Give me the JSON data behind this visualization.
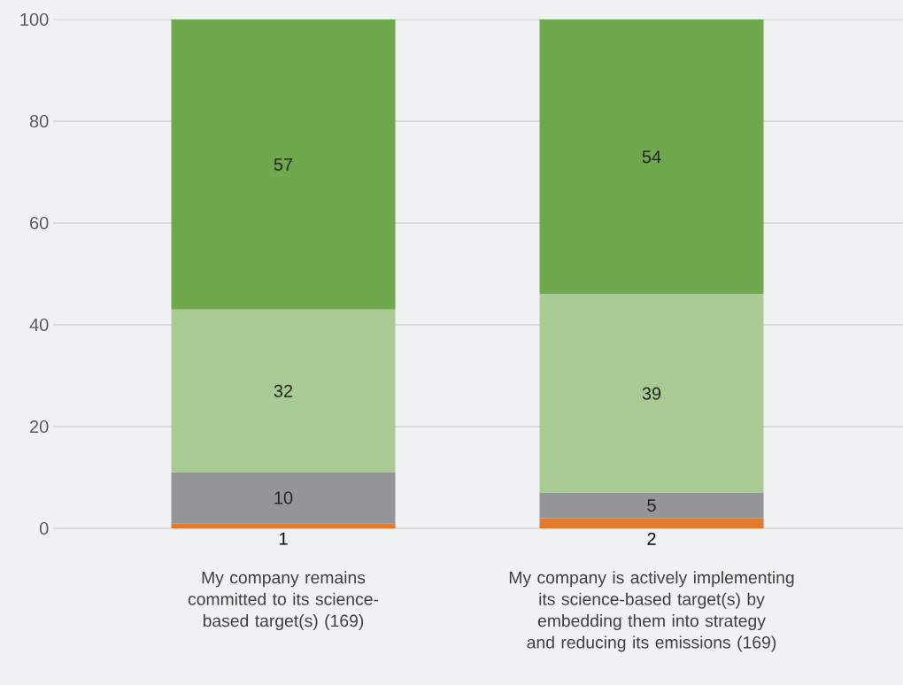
{
  "chart_data": {
    "type": "bar",
    "stacked": true,
    "categories": [
      "1",
      "2"
    ],
    "series": [
      {
        "color": "#e07b2f",
        "values": [
          1,
          2
        ],
        "value_labels": [
          null,
          null
        ]
      },
      {
        "color": "#939598",
        "values": [
          10,
          5
        ],
        "value_labels": [
          "10",
          "5"
        ]
      },
      {
        "color": "#a9cb93",
        "values": [
          32,
          39
        ],
        "value_labels": [
          "32",
          "39"
        ]
      },
      {
        "color": "#70a84e",
        "values": [
          57,
          54
        ],
        "value_labels": [
          "57",
          "54"
        ]
      }
    ],
    "ylim": [
      0,
      100
    ],
    "yticks": [
      0,
      20,
      40,
      60,
      80,
      100
    ],
    "grid": "y",
    "annotations": [
      "My company remains committed to its science-based target(s) (169)",
      "My company is actively implementing its science-based target(s) by embedding them into strategy and reducing its emissions (169)"
    ]
  }
}
